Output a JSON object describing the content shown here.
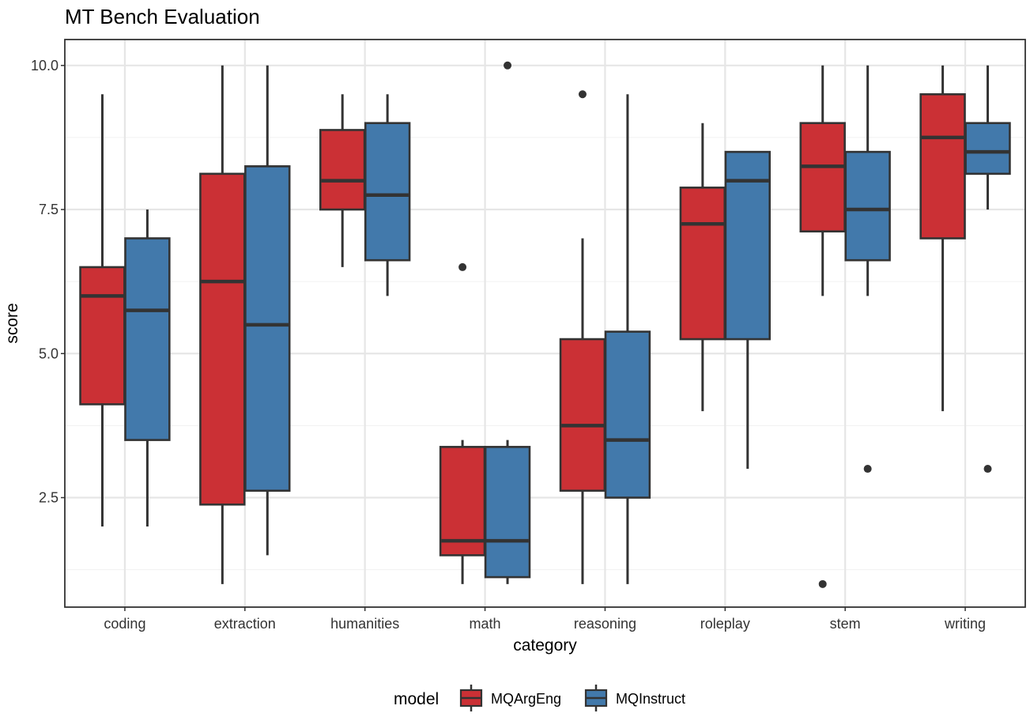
{
  "chart_data": {
    "type": "boxplot",
    "title": "MT Bench Evaluation",
    "xlabel": "category",
    "ylabel": "score",
    "ylim": [
      0.6,
      10.45
    ],
    "yticks": [
      2.5,
      5.0,
      7.5,
      10.0
    ],
    "ytick_labels": [
      "2.5",
      "5.0",
      "7.5",
      "10.0"
    ],
    "grid": true,
    "categories": [
      "coding",
      "extraction",
      "humanities",
      "math",
      "reasoning",
      "roleplay",
      "stem",
      "writing"
    ],
    "legend": {
      "title": "model",
      "position": "bottom"
    },
    "series": [
      {
        "name": "MQArgEng",
        "color": "#CB3035",
        "boxes": [
          {
            "q1": 4.12,
            "median": 6.0,
            "q3": 6.5,
            "lo": 2.0,
            "hi": 9.5,
            "outliers": []
          },
          {
            "q1": 2.38,
            "median": 6.25,
            "q3": 8.12,
            "lo": 1.0,
            "hi": 10.0,
            "outliers": []
          },
          {
            "q1": 7.5,
            "median": 8.0,
            "q3": 8.88,
            "lo": 6.5,
            "hi": 9.5,
            "outliers": []
          },
          {
            "q1": 1.5,
            "median": 1.75,
            "q3": 3.38,
            "lo": 1.0,
            "hi": 3.5,
            "outliers": [
              6.5
            ]
          },
          {
            "q1": 2.62,
            "median": 3.75,
            "q3": 5.25,
            "lo": 1.0,
            "hi": 7.0,
            "outliers": [
              9.5
            ]
          },
          {
            "q1": 5.25,
            "median": 7.25,
            "q3": 7.88,
            "lo": 4.0,
            "hi": 9.0,
            "outliers": []
          },
          {
            "q1": 7.12,
            "median": 8.25,
            "q3": 9.0,
            "lo": 6.0,
            "hi": 10.0,
            "outliers": [
              1.0
            ]
          },
          {
            "q1": 7.0,
            "median": 8.75,
            "q3": 9.5,
            "lo": 4.0,
            "hi": 10.0,
            "outliers": []
          }
        ]
      },
      {
        "name": "MQInstruct",
        "color": "#4279AB",
        "boxes": [
          {
            "q1": 3.5,
            "median": 5.75,
            "q3": 7.0,
            "lo": 2.0,
            "hi": 7.5,
            "outliers": []
          },
          {
            "q1": 2.62,
            "median": 5.5,
            "q3": 8.25,
            "lo": 1.5,
            "hi": 10.0,
            "outliers": []
          },
          {
            "q1": 6.62,
            "median": 7.75,
            "q3": 9.0,
            "lo": 6.0,
            "hi": 9.5,
            "outliers": []
          },
          {
            "q1": 1.12,
            "median": 1.75,
            "q3": 3.38,
            "lo": 1.0,
            "hi": 3.5,
            "outliers": [
              10.0
            ]
          },
          {
            "q1": 2.5,
            "median": 3.5,
            "q3": 5.38,
            "lo": 1.0,
            "hi": 9.5,
            "outliers": []
          },
          {
            "q1": 5.25,
            "median": 8.0,
            "q3": 8.5,
            "lo": 3.0,
            "hi": 8.5,
            "outliers": []
          },
          {
            "q1": 6.62,
            "median": 7.5,
            "q3": 8.5,
            "lo": 6.0,
            "hi": 10.0,
            "outliers": [
              3.0
            ]
          },
          {
            "q1": 8.12,
            "median": 8.5,
            "q3": 9.0,
            "lo": 7.5,
            "hi": 10.0,
            "outliers": [
              3.0
            ]
          }
        ]
      }
    ]
  }
}
